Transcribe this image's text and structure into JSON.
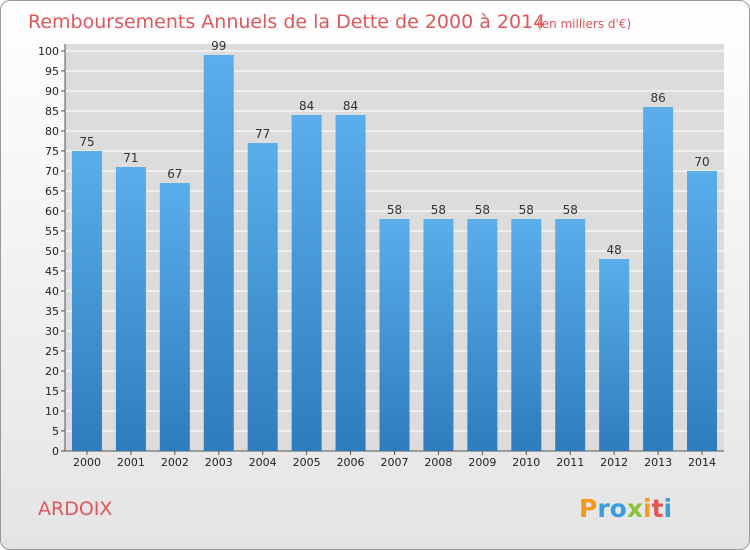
{
  "chart_data": {
    "type": "bar",
    "title": "Remboursements Annuels de la Dette de 2000 à 2014",
    "subtitle": "(en milliers d'€)",
    "categories": [
      "2000",
      "2001",
      "2002",
      "2003",
      "2004",
      "2005",
      "2006",
      "2007",
      "2008",
      "2009",
      "2010",
      "2011",
      "2012",
      "2013",
      "2014"
    ],
    "values": [
      75,
      71,
      67,
      99,
      77,
      84,
      84,
      58,
      58,
      58,
      58,
      58,
      48,
      86,
      70
    ],
    "ylim": [
      0,
      100
    ],
    "ytick_step": 5,
    "grid": true,
    "bar_color": "#4a9ee0"
  },
  "footer": {
    "commune": "ARDOIX",
    "brand_letters": [
      {
        "char": "P",
        "color": "#f39a1d"
      },
      {
        "char": "r",
        "color": "#3a9de0"
      },
      {
        "char": "o",
        "color": "#3a9de0"
      },
      {
        "char": "x",
        "color": "#8cc23a"
      },
      {
        "char": "i",
        "color": "#f39a1d"
      },
      {
        "char": "t",
        "color": "#e0565a"
      },
      {
        "char": "i",
        "color": "#3a9de0"
      }
    ]
  }
}
